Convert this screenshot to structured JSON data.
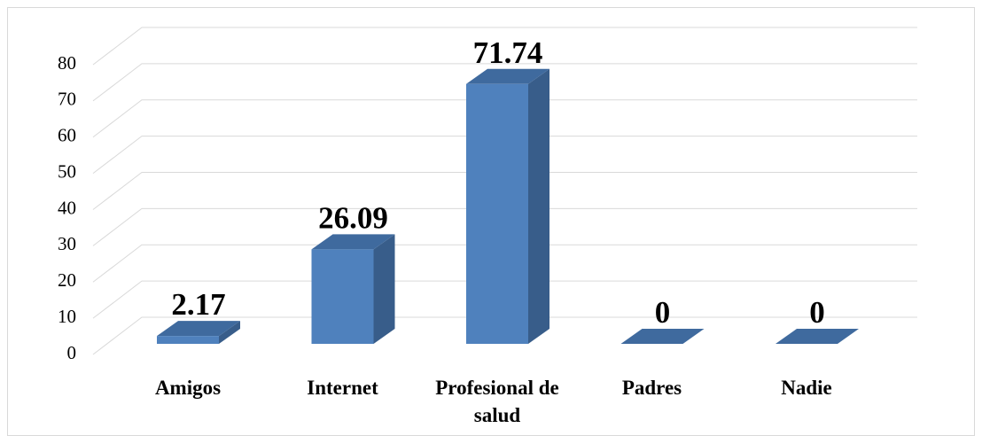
{
  "chart_data": {
    "type": "bar3d",
    "categories": [
      "Amigos",
      "Internet",
      "Profesional de salud",
      "Padres",
      "Nadie"
    ],
    "values": [
      2.17,
      26.09,
      71.74,
      0,
      0
    ],
    "color": "#4f81bd",
    "ylim": [
      0,
      80
    ],
    "yticks": [
      0,
      10,
      20,
      30,
      40,
      50,
      60,
      70,
      80
    ],
    "grid": true
  }
}
